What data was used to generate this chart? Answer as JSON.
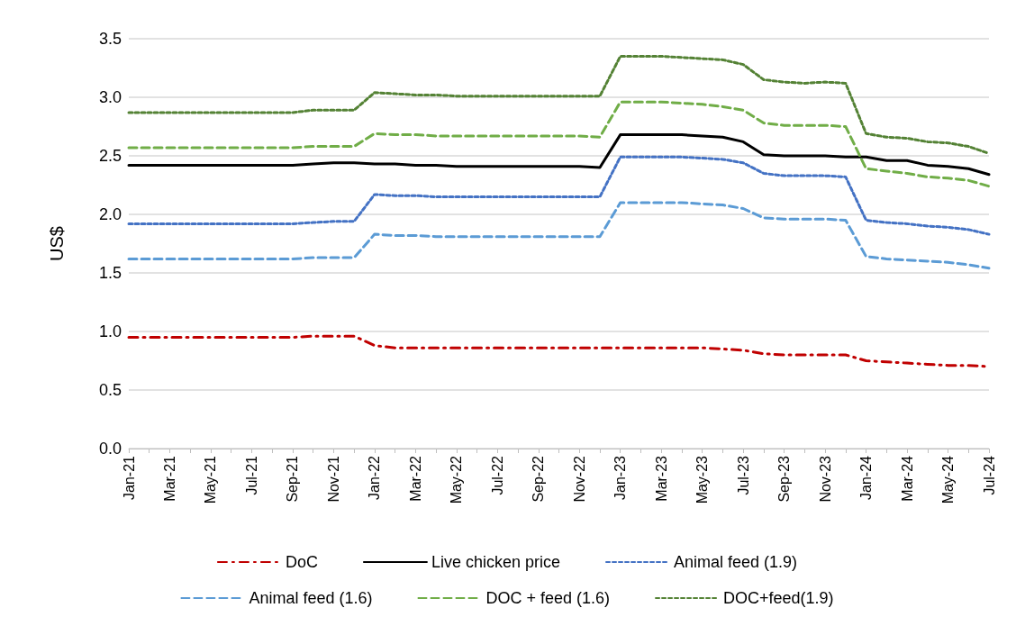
{
  "chart_data": {
    "type": "line",
    "ylabel": "US$",
    "categories": [
      "Jan-21",
      null,
      "Mar-21",
      null,
      "May-21",
      null,
      "Jul-21",
      null,
      "Sep-21",
      null,
      "Nov-21",
      null,
      "Jan-22",
      null,
      "Mar-22",
      null,
      "May-22",
      null,
      "Jul-22",
      null,
      "Sep-22",
      null,
      "Nov-22",
      null,
      "Jan-23",
      null,
      "Mar-23",
      null,
      "May-23",
      null,
      "Jul-23",
      null,
      "Sep-23",
      null,
      "Nov-23",
      null,
      "Jan-24",
      null,
      "Mar-24",
      null,
      "May-24",
      null,
      "Jul-24"
    ],
    "series": [
      {
        "name": "DoC",
        "color": "#c00000",
        "line_style": "dashdot",
        "values": [
          0.95,
          0.95,
          0.95,
          0.95,
          0.95,
          0.95,
          0.95,
          0.95,
          0.95,
          0.96,
          0.96,
          0.96,
          0.88,
          0.86,
          0.86,
          0.86,
          0.86,
          0.86,
          0.86,
          0.86,
          0.86,
          0.86,
          0.86,
          0.86,
          0.86,
          0.86,
          0.86,
          0.86,
          0.86,
          0.85,
          0.84,
          0.81,
          0.8,
          0.8,
          0.8,
          0.8,
          0.75,
          0.74,
          0.73,
          0.72,
          0.71,
          0.71,
          0.7
        ]
      },
      {
        "name": "Live chicken price",
        "color": "#000000",
        "line_style": "solid",
        "values": [
          2.42,
          2.42,
          2.42,
          2.42,
          2.42,
          2.42,
          2.42,
          2.42,
          2.42,
          2.43,
          2.44,
          2.44,
          2.43,
          2.43,
          2.42,
          2.42,
          2.41,
          2.41,
          2.41,
          2.41,
          2.41,
          2.41,
          2.41,
          2.4,
          2.68,
          2.68,
          2.68,
          2.68,
          2.67,
          2.66,
          2.62,
          2.51,
          2.5,
          2.5,
          2.5,
          2.49,
          2.49,
          2.46,
          2.46,
          2.42,
          2.41,
          2.39,
          2.34
        ]
      },
      {
        "name": "Animal feed (1.9)",
        "color": "#4472c4",
        "line_style": "dotted",
        "values": [
          1.92,
          1.92,
          1.92,
          1.92,
          1.92,
          1.92,
          1.92,
          1.92,
          1.92,
          1.93,
          1.94,
          1.94,
          2.17,
          2.16,
          2.16,
          2.15,
          2.15,
          2.15,
          2.15,
          2.15,
          2.15,
          2.15,
          2.15,
          2.15,
          2.49,
          2.49,
          2.49,
          2.49,
          2.48,
          2.47,
          2.44,
          2.35,
          2.33,
          2.33,
          2.33,
          2.32,
          1.95,
          1.93,
          1.92,
          1.9,
          1.89,
          1.87,
          1.83
        ]
      },
      {
        "name": "Animal feed (1.6)",
        "color": "#5b9bd5",
        "line_style": "dashed",
        "values": [
          1.62,
          1.62,
          1.62,
          1.62,
          1.62,
          1.62,
          1.62,
          1.62,
          1.62,
          1.63,
          1.63,
          1.63,
          1.83,
          1.82,
          1.82,
          1.81,
          1.81,
          1.81,
          1.81,
          1.81,
          1.81,
          1.81,
          1.81,
          1.81,
          2.1,
          2.1,
          2.1,
          2.1,
          2.09,
          2.08,
          2.05,
          1.97,
          1.96,
          1.96,
          1.96,
          1.95,
          1.64,
          1.62,
          1.61,
          1.6,
          1.59,
          1.57,
          1.54
        ]
      },
      {
        "name": "DOC + feed (1.6)",
        "color": "#70ad47",
        "line_style": "dashed",
        "values": [
          2.57,
          2.57,
          2.57,
          2.57,
          2.57,
          2.57,
          2.57,
          2.57,
          2.57,
          2.58,
          2.58,
          2.58,
          2.69,
          2.68,
          2.68,
          2.67,
          2.67,
          2.67,
          2.67,
          2.67,
          2.67,
          2.67,
          2.67,
          2.66,
          2.96,
          2.96,
          2.96,
          2.95,
          2.94,
          2.92,
          2.89,
          2.78,
          2.76,
          2.76,
          2.76,
          2.75,
          2.39,
          2.37,
          2.35,
          2.32,
          2.31,
          2.29,
          2.24
        ]
      },
      {
        "name": "DOC+feed(1.9)",
        "color": "#548235",
        "line_style": "dotted",
        "values": [
          2.87,
          2.87,
          2.87,
          2.87,
          2.87,
          2.87,
          2.87,
          2.87,
          2.87,
          2.89,
          2.89,
          2.89,
          3.04,
          3.03,
          3.02,
          3.02,
          3.01,
          3.01,
          3.01,
          3.01,
          3.01,
          3.01,
          3.01,
          3.01,
          3.35,
          3.35,
          3.35,
          3.34,
          3.33,
          3.32,
          3.28,
          3.15,
          3.13,
          3.12,
          3.13,
          3.12,
          2.69,
          2.66,
          2.65,
          2.62,
          2.61,
          2.58,
          2.52
        ]
      }
    ],
    "ylim": [
      0,
      3.5
    ],
    "yticks": [
      {
        "value": 0,
        "label": "0.0"
      },
      0.5,
      {
        "value": 1,
        "label": "1.0"
      },
      1.5,
      {
        "value": 2,
        "label": "2.0"
      },
      2.5,
      {
        "value": 3,
        "label": "3.0"
      },
      3.5
    ],
    "grid": "y",
    "legend": "bottom",
    "marker": "none"
  }
}
